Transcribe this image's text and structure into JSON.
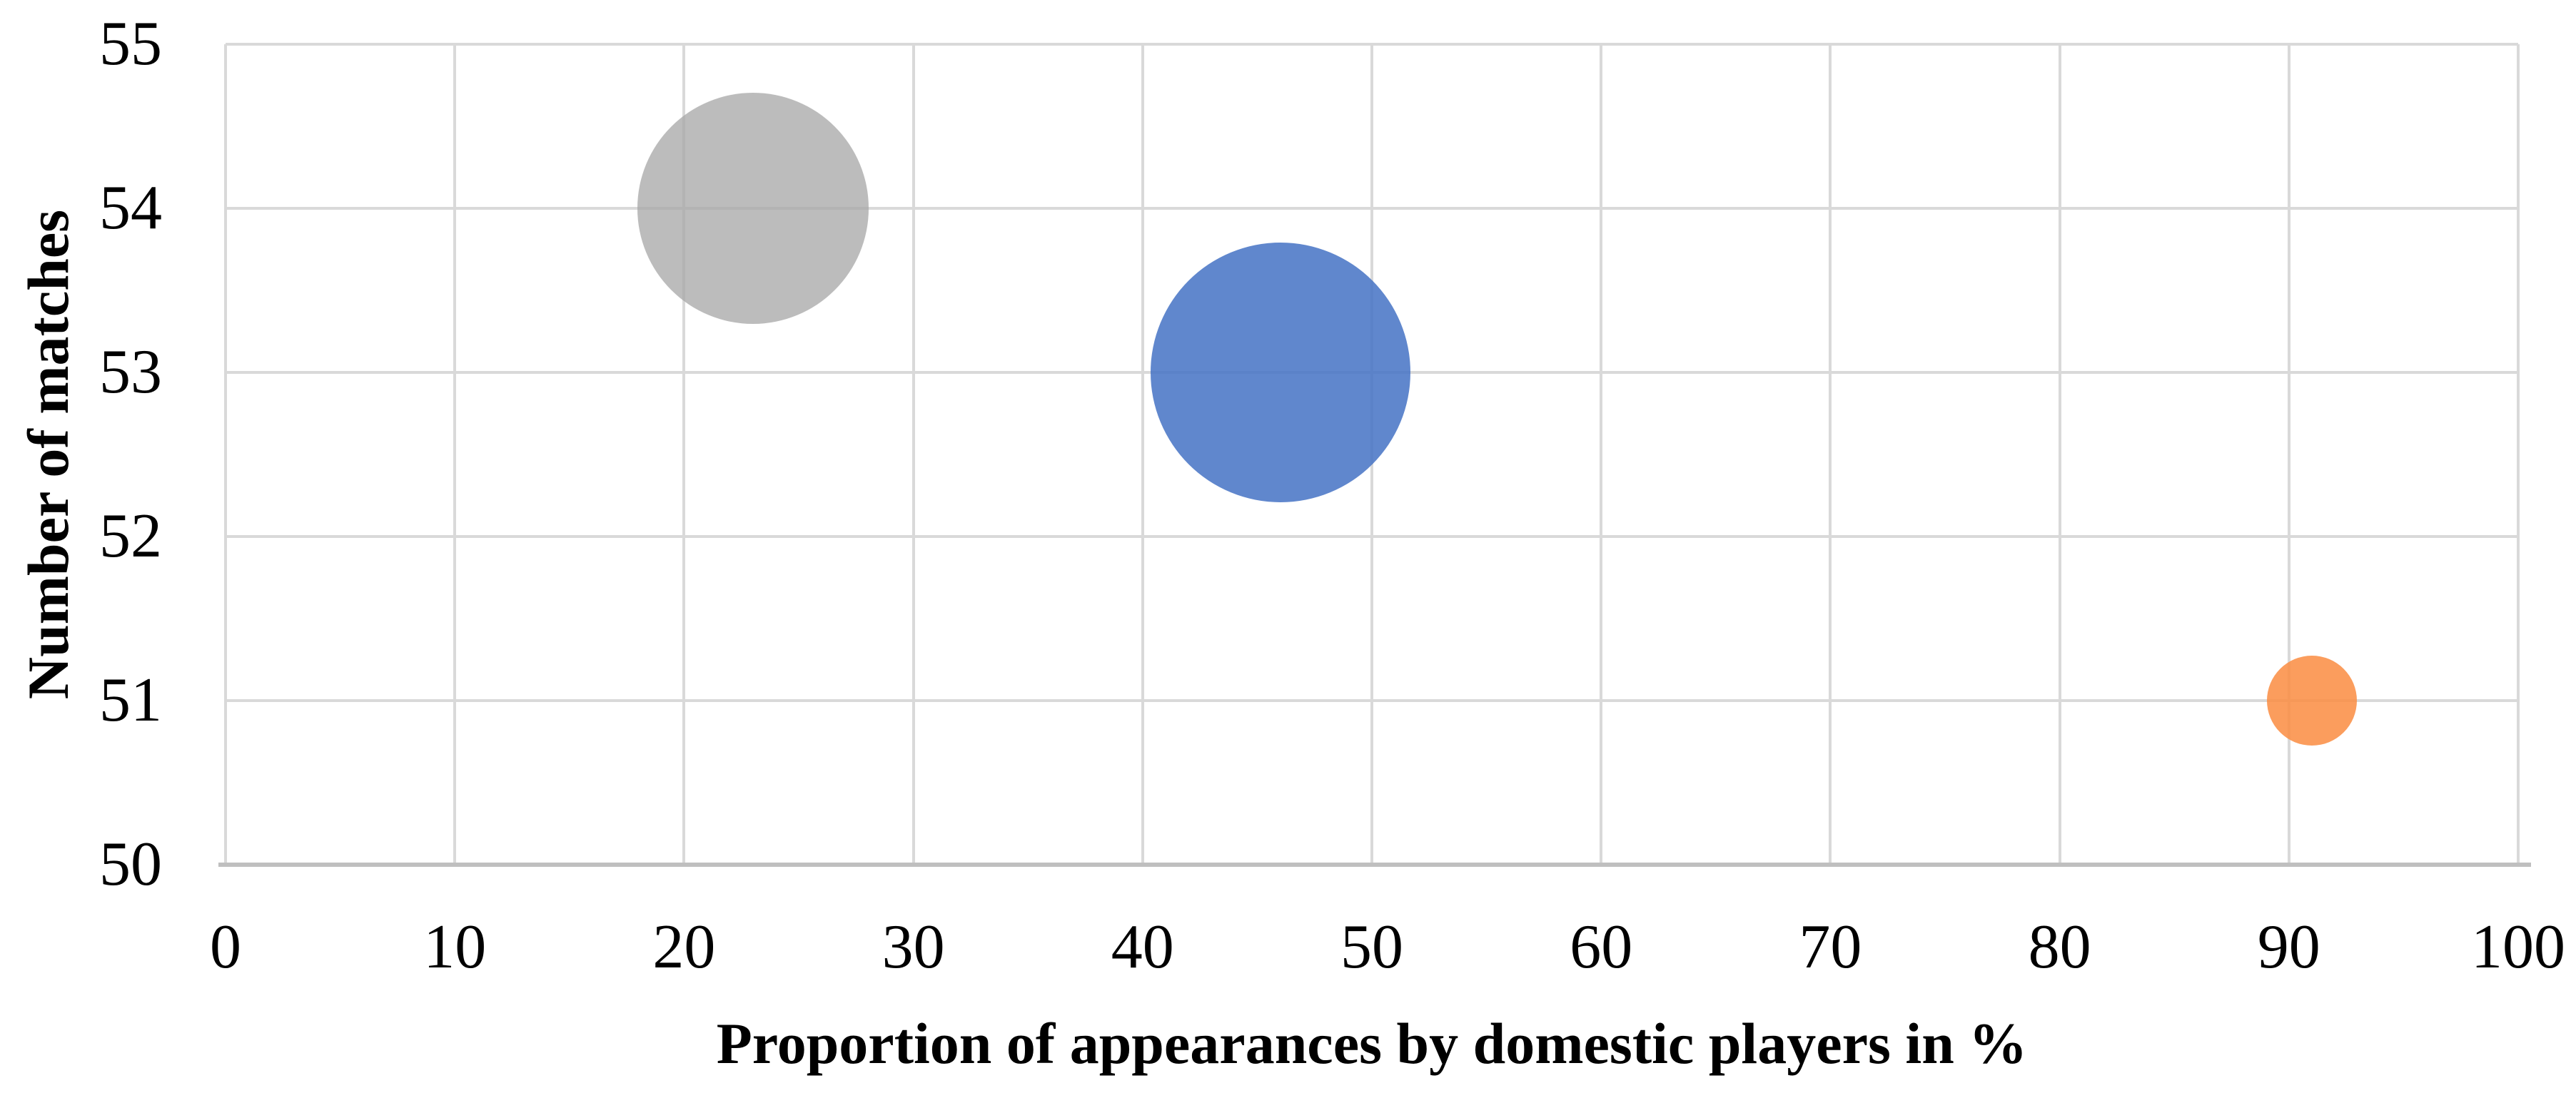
{
  "figure": {
    "background_color": "#ffffff",
    "text_color": "#000000"
  },
  "chart_data": {
    "type": "scatter",
    "subtype": "bubble",
    "title": "",
    "xlabel": "Proportion of appearances by domestic players in %",
    "ylabel": "Number of matches",
    "xlim": [
      0,
      100
    ],
    "ylim": [
      50,
      55
    ],
    "xticks": [
      0,
      10,
      20,
      30,
      40,
      50,
      60,
      70,
      80,
      90,
      100
    ],
    "yticks": [
      50,
      51,
      52,
      53,
      54,
      55
    ],
    "grid": true,
    "legend_position": "none",
    "gridline_color": "#d9d9d9",
    "axis_line_color": "#bfbfbf",
    "points": [
      {
        "name": "gray-bubble",
        "x": 23,
        "y": 54,
        "radius_px": 162,
        "fill_rgba": "rgba(165,165,165,0.75)",
        "apparent_color": "#bcbcbc"
      },
      {
        "name": "blue-bubble",
        "x": 46,
        "y": 53,
        "radius_px": 182,
        "fill_rgba": "rgba(68,114,196,0.85)",
        "apparent_color": "#5c8dd0"
      },
      {
        "name": "orange-bubble",
        "x": 91,
        "y": 51,
        "radius_px": 63,
        "fill_rgba": "rgba(250,140,65,0.85)",
        "apparent_color": "#fb9d60"
      }
    ]
  }
}
